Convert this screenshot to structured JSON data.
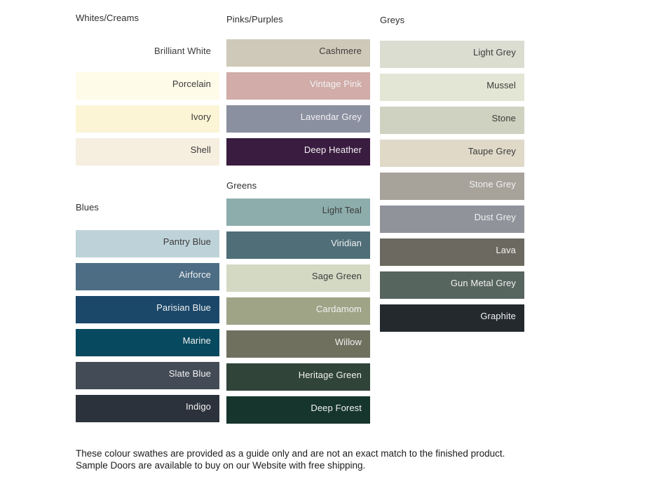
{
  "page": {
    "background": "#ffffff"
  },
  "columns": [
    {
      "sections": [
        {
          "header": "Whites/Creams",
          "swatches": [
            {
              "label": "Brilliant White",
              "color": "#ffffff",
              "text": "dark"
            },
            {
              "label": "Porcelain",
              "color": "#fefbe8",
              "text": "dark"
            },
            {
              "label": "Ivory",
              "color": "#fbf5d6",
              "text": "dark"
            },
            {
              "label": "Shell",
              "color": "#f6eedf",
              "text": "dark"
            }
          ]
        },
        {
          "header": "Blues",
          "swatches": [
            {
              "label": "Pantry Blue",
              "color": "#bed3d9",
              "text": "dark"
            },
            {
              "label": "Airforce",
              "color": "#4d6d85",
              "text": "light"
            },
            {
              "label": "Parisian Blue",
              "color": "#1b4769",
              "text": "light"
            },
            {
              "label": "Marine",
              "color": "#07495e",
              "text": "light"
            },
            {
              "label": "Slate Blue",
              "color": "#434b56",
              "text": "light"
            },
            {
              "label": "Indigo",
              "color": "#2b323c",
              "text": "light"
            }
          ]
        }
      ]
    },
    {
      "sections": [
        {
          "header": "Pinks/Purples",
          "swatches": [
            {
              "label": "Cashmere",
              "color": "#cfc9b9",
              "text": "dark"
            },
            {
              "label": "Vintage Pink",
              "color": "#d1aca8",
              "text": "light"
            },
            {
              "label": "Lavendar Grey",
              "color": "#8b90a1",
              "text": "light"
            },
            {
              "label": "Deep Heather",
              "color": "#3a1c40",
              "text": "light"
            }
          ]
        },
        {
          "header": "Greens",
          "swatches": [
            {
              "label": "Light Teal",
              "color": "#8dadac",
              "text": "dark"
            },
            {
              "label": "Viridian",
              "color": "#4f6e78",
              "text": "light"
            },
            {
              "label": "Sage Green",
              "color": "#d4d9c4",
              "text": "dark"
            },
            {
              "label": "Cardamom",
              "color": "#9fa487",
              "text": "light"
            },
            {
              "label": "Willow",
              "color": "#70705f",
              "text": "light"
            },
            {
              "label": "Heritage Green",
              "color": "#31443a",
              "text": "light"
            },
            {
              "label": "Deep Forest",
              "color": "#16352d",
              "text": "light"
            }
          ]
        }
      ]
    },
    {
      "sections": [
        {
          "header": "Greys",
          "swatches": [
            {
              "label": "Light Grey",
              "color": "#dcddd1",
              "text": "dark"
            },
            {
              "label": "Mussel",
              "color": "#e4e6d5",
              "text": "dark"
            },
            {
              "label": "Stone",
              "color": "#cfd2c0",
              "text": "dark"
            },
            {
              "label": "Taupe Grey",
              "color": "#e0d9c8",
              "text": "dark"
            },
            {
              "label": "Stone Grey",
              "color": "#a7a29a",
              "text": "light"
            },
            {
              "label": "Dust Grey",
              "color": "#91939b",
              "text": "light"
            },
            {
              "label": "Lava",
              "color": "#6c6a60",
              "text": "light"
            },
            {
              "label": "Gun Metal Grey",
              "color": "#57655f",
              "text": "light"
            },
            {
              "label": "Graphite",
              "color": "#24292e",
              "text": "light"
            }
          ]
        }
      ]
    }
  ],
  "footer": {
    "text": "These colour swathes are provided as a guide only and are not an exact match to the finished product.  Sample Doors are available to buy on our Website with free shipping."
  }
}
